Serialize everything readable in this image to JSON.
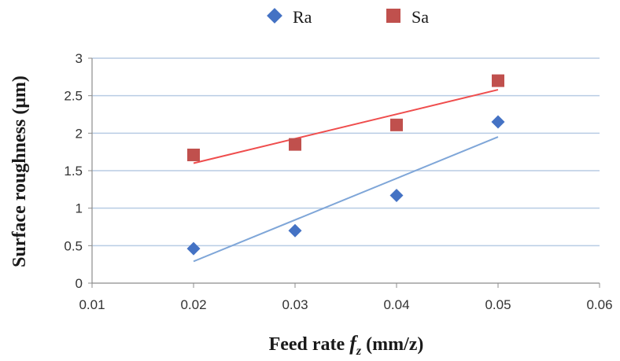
{
  "chart_data": {
    "type": "scatter",
    "xlabel_main": "Feed rate ",
    "xlabel_var": "f",
    "xlabel_sub": "z",
    "xlabel_unit": " (mm/z)",
    "ylabel": "Surface roughness (μm)",
    "xlim": [
      0.01,
      0.06
    ],
    "ylim": [
      0,
      3
    ],
    "xticks": [
      "0.01",
      "0.02",
      "0.03",
      "0.04",
      "0.05",
      "0.06"
    ],
    "yticks": [
      "0",
      "0.5",
      "1",
      "1.5",
      "2",
      "2.5",
      "3"
    ],
    "grid": "horizontal",
    "legend_position": "top",
    "series": [
      {
        "name": "Ra",
        "marker": "diamond",
        "color": "#4472c4",
        "trend_color": "#7fa6d8",
        "x": [
          0.02,
          0.03,
          0.04,
          0.05
        ],
        "y": [
          0.46,
          0.7,
          1.17,
          2.15
        ],
        "trendline": [
          [
            0.02,
            0.29
          ],
          [
            0.05,
            1.95
          ]
        ]
      },
      {
        "name": "Sa",
        "marker": "square",
        "color": "#c0504d",
        "trend_color": "#ef4d4d",
        "x": [
          0.02,
          0.03,
          0.04,
          0.05
        ],
        "y": [
          1.71,
          1.85,
          2.11,
          2.7
        ],
        "trendline": [
          [
            0.02,
            1.6
          ],
          [
            0.05,
            2.58
          ]
        ]
      }
    ]
  }
}
